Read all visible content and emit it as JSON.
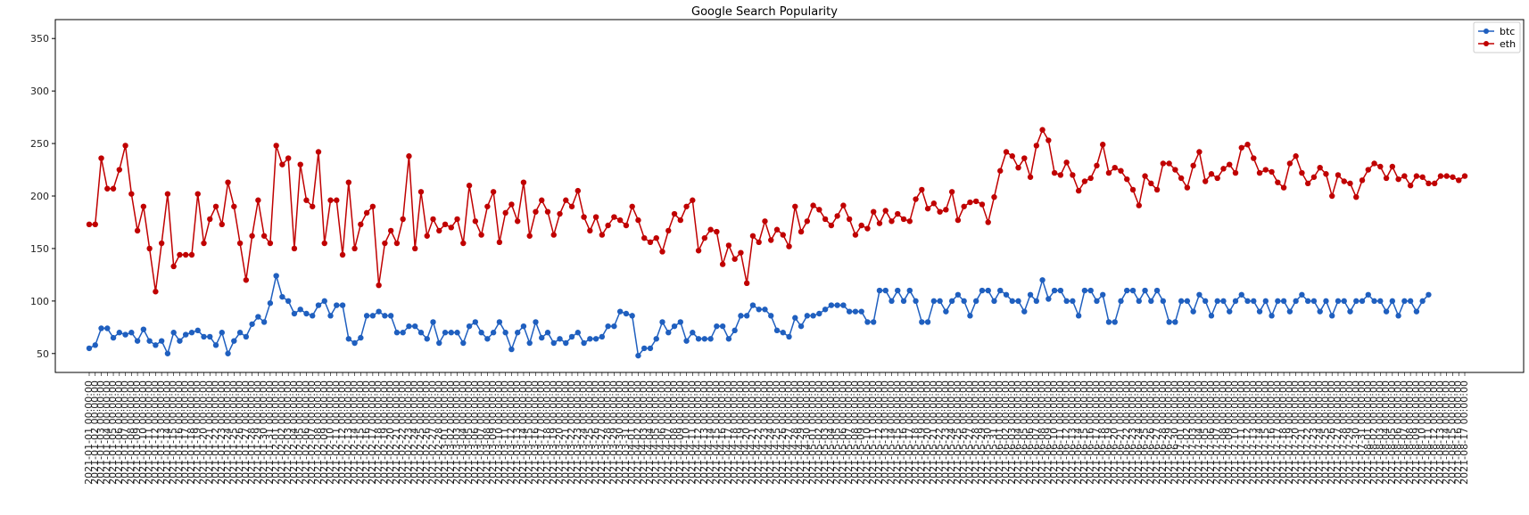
{
  "chart_data": {
    "type": "line",
    "title": "Google Search Popularity",
    "xlabel": "",
    "ylabel": "",
    "ylim": [
      32,
      368
    ],
    "yticks": [
      50,
      100,
      150,
      200,
      250,
      300,
      350
    ],
    "grid": false,
    "legend_position": "top-right",
    "x_tick_format": "2021-MM-DD 00:00:00",
    "x_start_label": "2021-01-01 00:00:00",
    "series": [
      {
        "name": "btc",
        "color": "#1f5fbf",
        "values": [
          55,
          58,
          74,
          74,
          65,
          70,
          68,
          70,
          62,
          73,
          62,
          58,
          62,
          50,
          70,
          62,
          68,
          70,
          72,
          66,
          66,
          58,
          70,
          50,
          62,
          70,
          66,
          78,
          85,
          80,
          98,
          124,
          104,
          100,
          88,
          92,
          88,
          86,
          96,
          100,
          86,
          96,
          96,
          64,
          60,
          65,
          86,
          86,
          90,
          86,
          86,
          70,
          70,
          76,
          76,
          70,
          64,
          80,
          60,
          70,
          70,
          70,
          60,
          76,
          80,
          70,
          64,
          70,
          80,
          70,
          54,
          70,
          76,
          60,
          80,
          65,
          70,
          60,
          64,
          60,
          66,
          70,
          60,
          64,
          64,
          66,
          76,
          76,
          90,
          88,
          86,
          48,
          55,
          55,
          64,
          80,
          70,
          76,
          80,
          62,
          70,
          64,
          64,
          64,
          76,
          76,
          64,
          72,
          86,
          86,
          96,
          92,
          92,
          86,
          72,
          70,
          66,
          84,
          76,
          86,
          86,
          88,
          92,
          96,
          96,
          96,
          90,
          90,
          90,
          80,
          80,
          110,
          110,
          100,
          110,
          100,
          110,
          100,
          80,
          80,
          100,
          100,
          90,
          100,
          106,
          100,
          86,
          100,
          110,
          110,
          100,
          110,
          106,
          100,
          100,
          90,
          106,
          100,
          120,
          102,
          110,
          110,
          100,
          100,
          86,
          110,
          110,
          100,
          106,
          80,
          80,
          100,
          110,
          110,
          100,
          110,
          100,
          110,
          100,
          80,
          80,
          100,
          100,
          90,
          106,
          100,
          86,
          100,
          100,
          90,
          100,
          106,
          100,
          100,
          90,
          100,
          86,
          100,
          100,
          90,
          100,
          106,
          100,
          100,
          90,
          100,
          86,
          100,
          100,
          90,
          100,
          100,
          106,
          100,
          100,
          90,
          100,
          86,
          100,
          100,
          90,
          100,
          106
        ]
      },
      {
        "name": "eth",
        "color": "#c00000",
        "values": [
          173,
          173,
          236,
          207,
          207,
          225,
          248,
          202,
          167,
          190,
          150,
          109,
          155,
          202,
          133,
          144,
          144,
          144,
          202,
          155,
          178,
          190,
          173,
          213,
          190,
          155,
          120,
          162,
          196,
          162,
          155,
          248,
          230,
          236,
          150,
          230,
          196,
          190,
          242,
          155,
          196,
          196,
          144,
          213,
          150,
          173,
          184,
          190,
          115,
          155,
          167,
          155,
          178,
          238,
          150,
          204,
          162,
          178,
          167,
          173,
          170,
          178,
          155,
          210,
          176,
          163,
          190,
          204,
          156,
          184,
          192,
          176,
          213,
          162,
          185,
          196,
          185,
          163,
          183,
          196,
          190,
          205,
          180,
          167,
          180,
          163,
          172,
          180,
          177,
          172,
          190,
          177,
          160,
          156,
          160,
          147,
          167,
          183,
          177,
          190,
          196,
          148,
          160,
          168,
          166,
          135,
          153,
          140,
          146,
          117,
          162,
          156,
          176,
          158,
          168,
          163,
          152,
          190,
          166,
          176,
          191,
          187,
          178,
          172,
          181,
          191,
          178,
          163,
          172,
          169,
          185,
          174,
          186,
          176,
          183,
          178,
          176,
          197,
          206,
          188,
          193,
          185,
          187,
          204,
          177,
          190,
          194,
          195,
          192,
          175,
          199,
          224,
          242,
          238,
          227,
          236,
          218,
          248,
          263,
          253,
          222,
          220,
          232,
          220,
          205,
          214,
          217,
          229,
          249,
          222,
          227,
          224,
          216,
          206,
          191,
          219,
          212,
          206,
          231,
          231,
          225,
          217,
          208,
          229,
          242,
          214,
          221,
          217,
          226,
          230,
          222,
          246,
          249,
          236,
          222,
          225,
          223,
          213,
          208,
          231,
          238,
          222,
          212,
          218,
          227,
          221,
          200,
          220,
          214,
          212,
          199,
          215,
          225,
          231,
          228,
          217,
          228,
          216,
          219,
          210,
          219,
          218,
          212,
          212,
          219,
          219,
          218,
          215,
          219
        ]
      }
    ]
  }
}
